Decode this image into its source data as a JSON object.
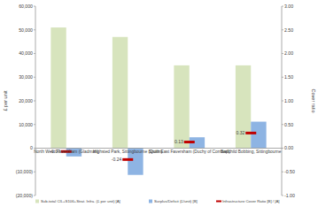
{
  "chart_data": {
    "type": "bar",
    "categories": [
      "North West Faversham (Gladman)",
      "Highsted Park, Sittingbourne (Quinn)",
      "South East Faversham (Duchy of Cornwall)",
      "Bapchild Bobbing, Sittingbourne"
    ],
    "y_label": "£ per unit",
    "y2_label": "Cover ratio",
    "ylim": [
      -20000,
      60000
    ],
    "yticks": [
      {
        "value": -20000,
        "label": "(20,000)"
      },
      {
        "value": -10000,
        "label": "(10,000)"
      },
      0,
      {
        "value": 10000,
        "label": "10,000"
      },
      {
        "value": 20000,
        "label": "20,000"
      },
      {
        "value": 30000,
        "label": "30,000"
      },
      {
        "value": 40000,
        "label": "40,000"
      },
      {
        "value": 50000,
        "label": "50,000"
      },
      {
        "value": 60000,
        "label": "60,000"
      }
    ],
    "y2lim": [
      -1,
      3
    ],
    "y2ticks": [
      {
        "value": -1,
        "label": "-1.00"
      },
      {
        "value": -0.5,
        "label": "-0.50"
      },
      {
        "value": 0,
        "label": "0.00"
      },
      {
        "value": 0.5,
        "label": "0.50"
      },
      {
        "value": 1,
        "label": "1.00"
      },
      {
        "value": 1.5,
        "label": "1.50"
      },
      {
        "value": 2,
        "label": "2.00"
      },
      {
        "value": 2.5,
        "label": "2.50"
      },
      {
        "value": 3,
        "label": "3.00"
      }
    ],
    "grid": false,
    "legend": "bottom",
    "series": [
      {
        "name": "Sub-total CIL+S106+Strat. Infra. (£ per unit) [A]",
        "type": "bar",
        "color": "#d7e4bd",
        "values": [
          51000,
          47000,
          35000,
          35000
        ]
      },
      {
        "name": "Surplus/Deficit (£/unit) [B]",
        "type": "bar",
        "color": "#8eb4e3",
        "values": [
          -3500,
          -11300,
          4600,
          11200
        ]
      },
      {
        "name": "Infrastructure Cover Ratio [B] / [A]",
        "type": "scatter",
        "marker": "dash",
        "color": "#c00000",
        "axis": "y2",
        "data_labels": true,
        "values": [
          -0.07,
          -0.24,
          0.13,
          0.32
        ]
      }
    ]
  }
}
